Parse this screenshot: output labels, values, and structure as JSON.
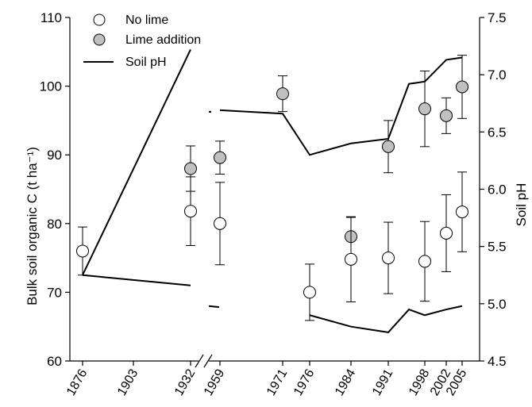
{
  "chart_data": {
    "type": "scatter",
    "xlabel": "",
    "ylabel": "Bulk soil organic C (t ha⁻¹)",
    "y2label": "Soil pH",
    "ylim": [
      60,
      110
    ],
    "y2lim": [
      4.5,
      7.5
    ],
    "yticks": [
      "60",
      "70",
      "80",
      "90",
      "100",
      "110"
    ],
    "y2ticks": [
      "4.5",
      "5.0",
      "5.5",
      "6.0",
      "6.5",
      "7.0",
      "7.5"
    ],
    "xticks": [
      "1876",
      "1903",
      "1932",
      "1959",
      "1971",
      "1976",
      "1984",
      "1991",
      "1998",
      "2002",
      "2005"
    ],
    "axis_break": "between 1932 and 1959",
    "legend_position": "top-left",
    "series": [
      {
        "name": "No lime",
        "marker": "open-circle",
        "color": "#ffffff",
        "points": [
          {
            "x": "1876",
            "y": 76.0,
            "err": 3.5
          },
          {
            "x": "1932",
            "y": 81.8,
            "err": 5.0
          },
          {
            "x": "1959",
            "y": 80.0,
            "err": 6.0
          },
          {
            "x": "1976",
            "y": 70.0,
            "err": 4.1
          },
          {
            "x": "1984",
            "y": 74.8,
            "err": 6.2
          },
          {
            "x": "1991",
            "y": 75.0,
            "err": 5.2
          },
          {
            "x": "1998",
            "y": 74.5,
            "err": 5.8
          },
          {
            "x": "2002",
            "y": 78.6,
            "err": 5.6
          },
          {
            "x": "2005",
            "y": 81.7,
            "err": 5.8
          }
        ]
      },
      {
        "name": "Lime addition",
        "marker": "filled-circle",
        "color": "#c0c0c0",
        "points": [
          {
            "x": "1932",
            "y": 88.0,
            "err": 3.3
          },
          {
            "x": "1959",
            "y": 89.6,
            "err": 2.4
          },
          {
            "x": "1971",
            "y": 98.9,
            "err": 2.6
          },
          {
            "x": "1984",
            "y": 78.1,
            "err": 2.8
          },
          {
            "x": "1991",
            "y": 91.2,
            "err": 3.8
          },
          {
            "x": "1998",
            "y": 96.7,
            "err": 5.5
          },
          {
            "x": "2002",
            "y": 95.7,
            "err": 2.6
          },
          {
            "x": "2005",
            "y": 99.9,
            "err": 4.6
          }
        ]
      },
      {
        "name": "Soil pH",
        "line_style": "solid",
        "color": "#000000",
        "axis": "right",
        "segments": [
          [
            {
              "x": "1876",
              "y": 5.25
            },
            {
              "x": "1932",
              "y": 7.22
            }
          ],
          [
            {
              "x": "1959",
              "y": 6.69
            },
            {
              "x": "1971",
              "y": 6.66
            },
            {
              "x": "1976",
              "y": 6.3
            },
            {
              "x": "1984",
              "y": 6.4
            },
            {
              "x": "1991",
              "y": 6.44
            },
            {
              "x": "1995",
              "y": 6.92
            },
            {
              "x": "1998",
              "y": 6.94
            },
            {
              "x": "2002",
              "y": 7.13
            },
            {
              "x": "2005",
              "y": 7.15
            }
          ],
          [
            {
              "x": "1876",
              "y": 5.25
            },
            {
              "x": "1932",
              "y": 5.16
            }
          ],
          [
            {
              "x": "1976",
              "y": 4.9
            },
            {
              "x": "1984",
              "y": 4.8
            },
            {
              "x": "1991",
              "y": 4.75
            },
            {
              "x": "1995",
              "y": 4.95
            },
            {
              "x": "1998",
              "y": 4.9
            },
            {
              "x": "2002",
              "y": 4.95
            },
            {
              "x": "2005",
              "y": 4.98
            }
          ]
        ]
      }
    ]
  }
}
